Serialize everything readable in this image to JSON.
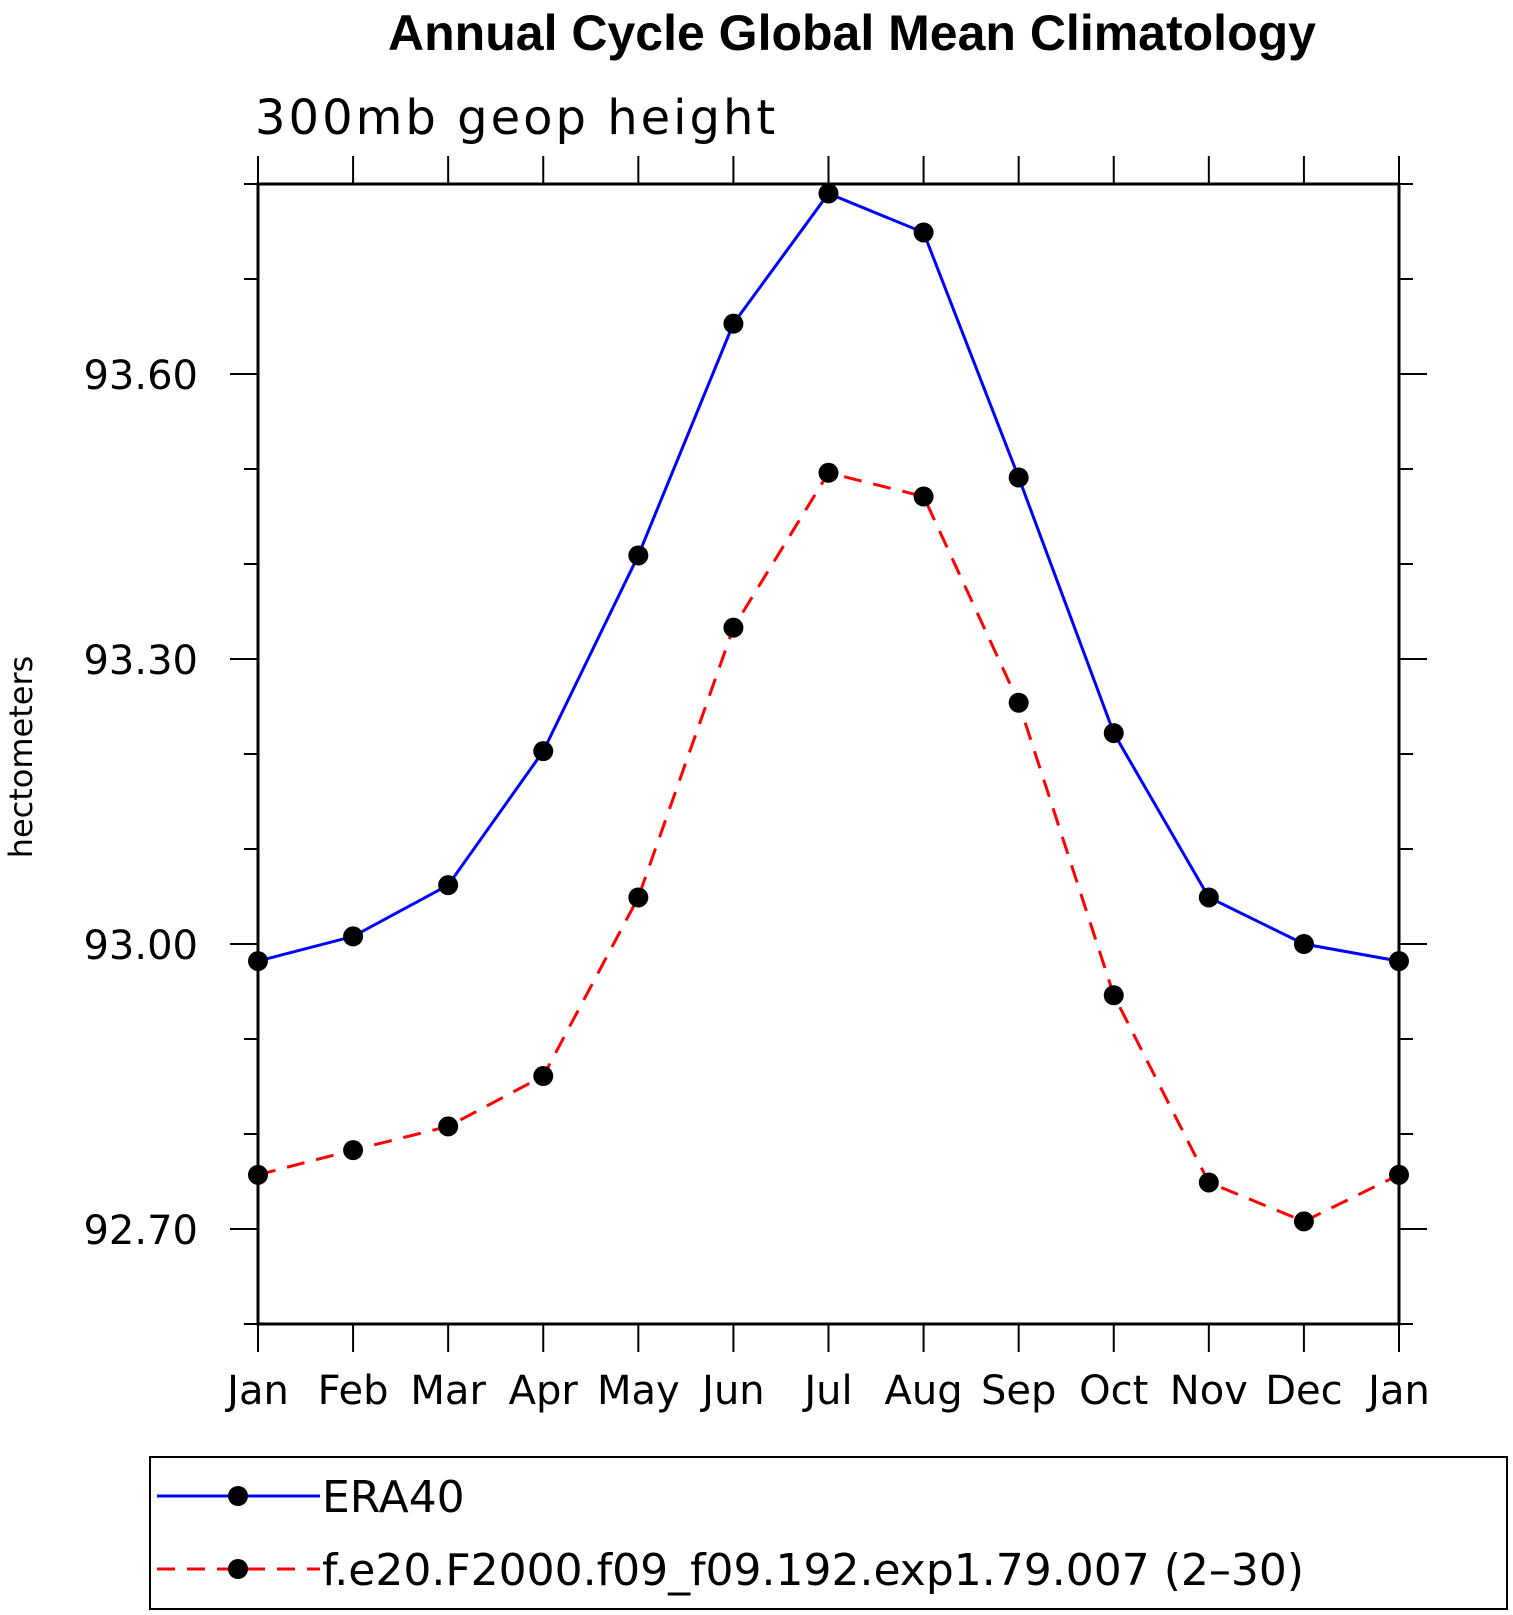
{
  "chart_data": {
    "type": "line",
    "title": "Annual Cycle Global Mean Climatology",
    "subtitle": "300mb geop height",
    "xlabel": "",
    "ylabel": "hectometers",
    "categories": [
      "Jan",
      "Feb",
      "Mar",
      "Apr",
      "May",
      "Jun",
      "Jul",
      "Aug",
      "Sep",
      "Oct",
      "Nov",
      "Dec",
      "Jan"
    ],
    "ylim": [
      92.6,
      93.8
    ],
    "yticks": [
      92.7,
      93.0,
      93.3,
      93.6
    ],
    "ytick_labels": [
      "92.70",
      "93.00",
      "93.30",
      "93.60"
    ],
    "y_minor_step": 0.1,
    "grid": false,
    "legend_position": "bottom",
    "series": [
      {
        "name": "ERA40",
        "color": "#0000ff",
        "line_style": "solid",
        "marker": "filled-circle",
        "values": [
          92.982,
          93.008,
          93.062,
          93.203,
          93.409,
          93.653,
          93.79,
          93.749,
          93.491,
          93.222,
          93.049,
          93.0,
          92.982
        ]
      },
      {
        "name": "f.e20.F2000.f09_f09.192.exp1.79.007 (2–30)",
        "color": "#ff0000",
        "line_style": "dashed",
        "marker": "filled-circle",
        "values": [
          92.757,
          92.783,
          92.808,
          92.861,
          93.049,
          93.333,
          93.496,
          93.471,
          93.254,
          92.946,
          92.749,
          92.708,
          92.757
        ]
      }
    ]
  }
}
